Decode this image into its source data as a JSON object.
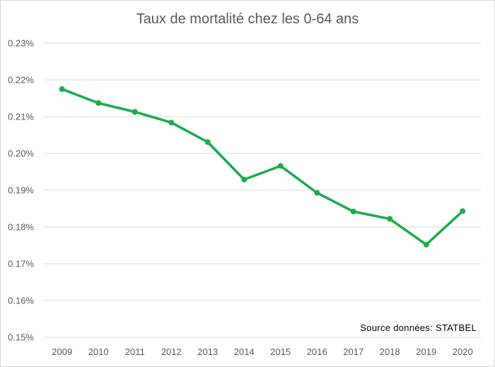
{
  "chart_data": {
    "type": "line",
    "title": "Taux de mortalité chez les 0-64 ans",
    "xlabel": "",
    "ylabel": "",
    "categories": [
      "2009",
      "2010",
      "2011",
      "2012",
      "2013",
      "2014",
      "2015",
      "2016",
      "2017",
      "2018",
      "2019",
      "2020"
    ],
    "series": [
      {
        "values": [
          0.2175,
          0.2137,
          0.2113,
          0.2084,
          0.2031,
          0.1929,
          0.1966,
          0.1893,
          0.1842,
          0.1822,
          0.1752,
          0.1843
        ]
      }
    ],
    "ylim": [
      0.15,
      0.23
    ],
    "yticks": [
      "0.15%",
      "0.16%",
      "0.17%",
      "0.18%",
      "0.19%",
      "0.20%",
      "0.21%",
      "0.22%",
      "0.23%"
    ],
    "annotation": "Source données: STATBEL",
    "grid": true,
    "legend": "none",
    "line_color": "#1aab4c",
    "grid_color": "#d9d9d9"
  }
}
